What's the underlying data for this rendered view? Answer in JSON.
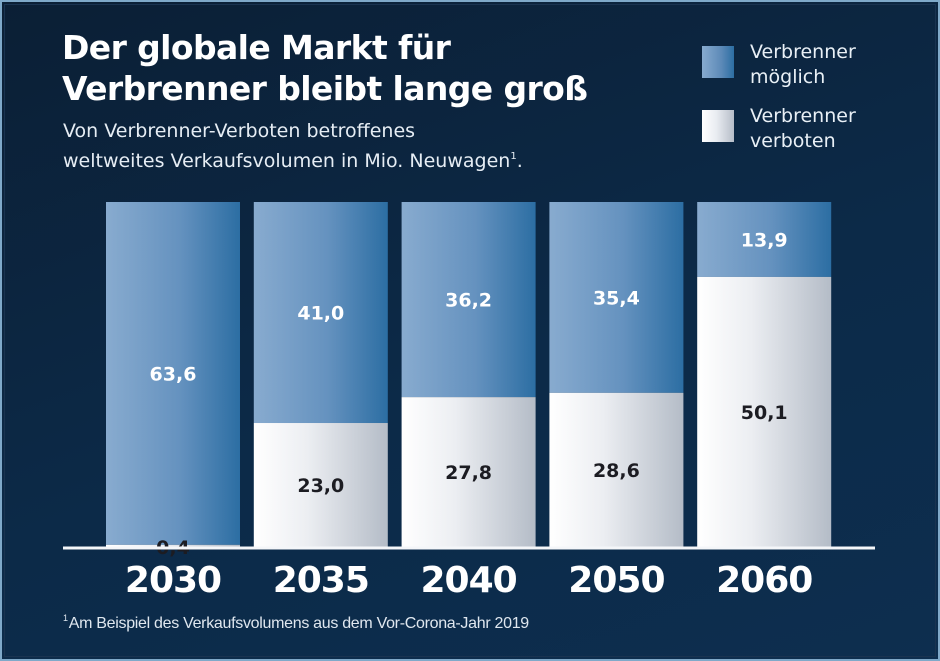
{
  "chart_data": {
    "type": "bar",
    "stacked": true,
    "normalized": true,
    "title": "Der globale Markt für Verbrenner bleibt lange groß",
    "title_lines": [
      "Der globale Markt für",
      "Verbrenner bleibt lange groß"
    ],
    "subtitle": "Von Verbrenner-Verboten betroffenes weltweites Verkaufsvolumen in Mio. Neuwagen¹.",
    "subtitle_lines": [
      "Von Verbrenner-Verboten betroffenes",
      "weltweites Verkaufsvolumen in Mio. Neuwagen"
    ],
    "subtitle_footnote_mark": "1",
    "subtitle_end": ".",
    "categories": [
      "2030",
      "2035",
      "2040",
      "2050",
      "2060"
    ],
    "series": [
      {
        "name": "Verbrenner verboten",
        "name_lines": [
          "Verbrenner",
          "verboten"
        ],
        "values": [
          0.4,
          23.0,
          27.8,
          28.6,
          50.1
        ],
        "labels": [
          "0,4",
          "23,0",
          "27,8",
          "28,6",
          "50,1"
        ],
        "color": "#f2f4f7",
        "label_color": "#1c1c22",
        "position": "bottom"
      },
      {
        "name": "Verbrenner möglich",
        "name_lines": [
          "Verbrenner",
          "möglich"
        ],
        "values": [
          63.6,
          41.0,
          36.2,
          35.4,
          13.9
        ],
        "labels": [
          "63,6",
          "41,0",
          "36,2",
          "35,4",
          "13,9"
        ],
        "color": "#6f9bc6",
        "label_color": "#ffffff",
        "position": "top"
      }
    ],
    "xlabel": "",
    "ylabel": "",
    "ylim_percent": [
      0,
      100
    ],
    "grid": false,
    "legend_position": "top-right",
    "footnote_mark": "1",
    "footnote": "Am Beispiel des Verkaufsvolumens aus dem Vor-Corona-Jahr 2019"
  },
  "colors": {
    "background": "#0c2744",
    "frame": "#7fa9c9",
    "axis_line": "#f4f6f9",
    "allowed_light": "#88abcf",
    "allowed_dark": "#2c6ea3",
    "banned_light": "#ffffff",
    "banned_dark": "#b6bdc8"
  }
}
